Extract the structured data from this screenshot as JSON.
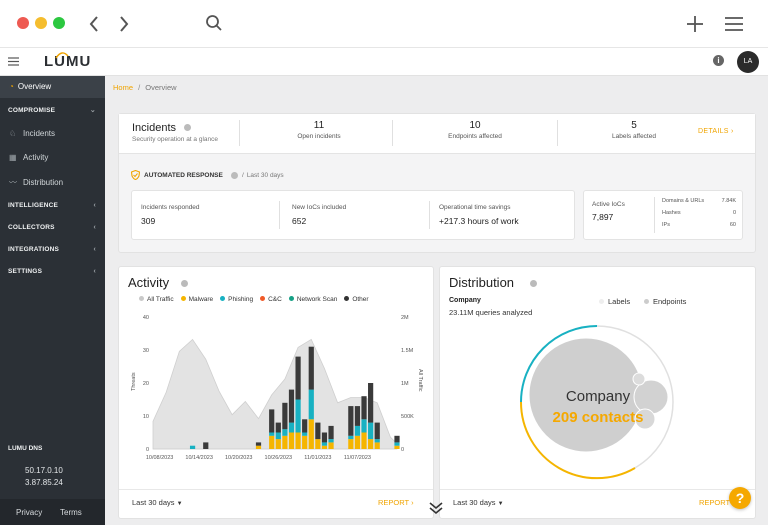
{
  "app": {
    "brand": "LUMU",
    "user_initials": "LA"
  },
  "breadcrumb": {
    "home": "Home",
    "sep": "/",
    "current": "Overview"
  },
  "sidebar": {
    "overview": "Overview",
    "groups": [
      {
        "label": "COMPROMISE",
        "expanded": true,
        "items": [
          {
            "label": "Incidents",
            "icon": "bell-icon"
          },
          {
            "label": "Activity",
            "icon": "grid-icon"
          },
          {
            "label": "Distribution",
            "icon": "pulse-icon"
          }
        ]
      },
      {
        "label": "INTELLIGENCE",
        "expanded": false
      },
      {
        "label": "COLLECTORS",
        "expanded": false
      },
      {
        "label": "INTEGRATIONS",
        "expanded": false
      },
      {
        "label": "SETTINGS",
        "expanded": false
      }
    ],
    "dns_title": "LUMU DNS",
    "dns_ips": [
      "50.17.0.10",
      "3.87.85.24"
    ],
    "privacy": "Privacy",
    "terms": "Terms"
  },
  "incidents": {
    "title": "Incidents",
    "subtitle": "Security operation at a glance",
    "stats": [
      {
        "value": "11",
        "label": "Open incidents"
      },
      {
        "value": "10",
        "label": "Endpoints affected"
      },
      {
        "value": "5",
        "label": "Labels affected"
      }
    ],
    "details": "DETAILS"
  },
  "automated": {
    "title": "AUTOMATED RESPONSE",
    "period": "Last 30 days",
    "metrics": [
      {
        "label": "Incidents responded",
        "value": "309"
      },
      {
        "label": "New IoCs included",
        "value": "652"
      },
      {
        "label": "Operational time savings",
        "value": "+217.3 hours of work"
      }
    ],
    "active_iocs_label": "Active IoCs",
    "active_iocs_value": "7,897",
    "breakdown": [
      {
        "label": "Domains & URLs",
        "value": "7.84K"
      },
      {
        "label": "Hashes",
        "value": "0"
      },
      {
        "label": "IPs",
        "value": "60"
      }
    ]
  },
  "activity": {
    "title": "Activity",
    "period": "Last 30 days",
    "report": "REPORT",
    "legend": [
      {
        "name": "All Traffic",
        "color": "#c9c9c9"
      },
      {
        "name": "Malware",
        "color": "#f5b500"
      },
      {
        "name": "Phishing",
        "color": "#18b1c2"
      },
      {
        "name": "C&C",
        "color": "#f05a28"
      },
      {
        "name": "Network Scan",
        "color": "#16a085"
      },
      {
        "name": "Other",
        "color": "#333333"
      }
    ]
  },
  "chart_data": {
    "type": "bar",
    "ylabel": "Threats",
    "y2label": "All Traffic",
    "ylim": [
      0,
      40
    ],
    "y_ticks": [
      "0",
      "10",
      "20",
      "30",
      "40"
    ],
    "y2_ticks": [
      "0",
      "500K",
      "1M",
      "1.5M",
      "2M"
    ],
    "x_ticks": [
      "10/08/2023",
      "10/14/2023",
      "10/20/2023",
      "10/26/2023",
      "11/01/2023",
      "11/07/2023"
    ],
    "stacks": [
      "Malware",
      "Phishing",
      "Other"
    ],
    "bars": [
      {
        "day": 6,
        "Malware": 0,
        "Phishing": 1,
        "Other": 0
      },
      {
        "day": 8,
        "Malware": 0,
        "Phishing": 0,
        "Other": 2
      },
      {
        "day": 16,
        "Malware": 1,
        "Phishing": 0,
        "Other": 1
      },
      {
        "day": 18,
        "Malware": 4,
        "Phishing": 1,
        "Other": 7
      },
      {
        "day": 19,
        "Malware": 3,
        "Phishing": 2,
        "Other": 3
      },
      {
        "day": 20,
        "Malware": 4,
        "Phishing": 2,
        "Other": 8
      },
      {
        "day": 21,
        "Malware": 5,
        "Phishing": 3,
        "Other": 10
      },
      {
        "day": 22,
        "Malware": 5,
        "Phishing": 10,
        "Other": 13
      },
      {
        "day": 23,
        "Malware": 4,
        "Phishing": 1,
        "Other": 4
      },
      {
        "day": 24,
        "Malware": 9,
        "Phishing": 9,
        "Other": 13
      },
      {
        "day": 25,
        "Malware": 3,
        "Phishing": 0,
        "Other": 5
      },
      {
        "day": 26,
        "Malware": 1,
        "Phishing": 1,
        "Other": 3
      },
      {
        "day": 27,
        "Malware": 2,
        "Phishing": 1,
        "Other": 4
      },
      {
        "day": 30,
        "Malware": 3,
        "Phishing": 1,
        "Other": 9
      },
      {
        "day": 31,
        "Malware": 4,
        "Phishing": 3,
        "Other": 6
      },
      {
        "day": 32,
        "Malware": 5,
        "Phishing": 4,
        "Other": 7
      },
      {
        "day": 33,
        "Malware": 3,
        "Phishing": 5,
        "Other": 12
      },
      {
        "day": 34,
        "Malware": 2,
        "Phishing": 1,
        "Other": 5
      },
      {
        "day": 37,
        "Malware": 1,
        "Phishing": 1,
        "Other": 2
      }
    ],
    "all_traffic": [
      [
        0,
        0.21
      ],
      [
        2,
        0.43
      ],
      [
        4,
        0.74
      ],
      [
        6,
        0.83
      ],
      [
        8,
        0.68
      ],
      [
        10,
        0.44
      ],
      [
        12,
        0.26
      ],
      [
        14,
        0.36
      ],
      [
        16,
        0.23
      ],
      [
        18,
        0.41
      ],
      [
        20,
        0.53
      ],
      [
        22,
        0.77
      ],
      [
        24,
        0.83
      ],
      [
        26,
        0.61
      ],
      [
        28,
        0.35
      ],
      [
        30,
        0.39
      ],
      [
        32,
        0.39
      ],
      [
        34,
        0.35
      ],
      [
        36,
        0.09
      ],
      [
        37,
        0.04
      ]
    ]
  },
  "distribution": {
    "title": "Distribution",
    "company_label": "Company",
    "queries": "23.11M queries analyzed",
    "legend": [
      "Labels",
      "Endpoints"
    ],
    "center_title": "Company",
    "center_value": "209 contacts",
    "period": "Last 30 days",
    "report": "REPORT"
  },
  "help": "?"
}
